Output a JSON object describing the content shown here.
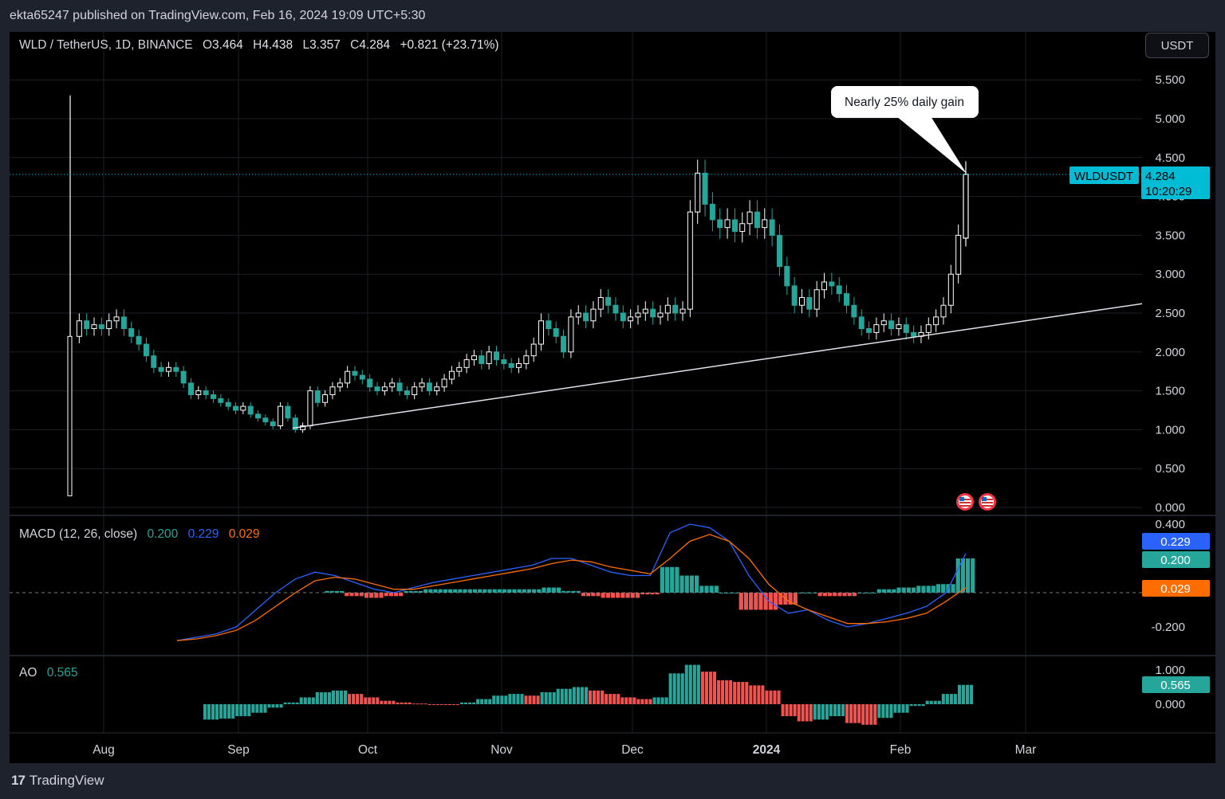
{
  "header": {
    "publisher": "ekta65247 published on TradingView.com, Feb 16, 2024 19:09 UTC+5:30"
  },
  "legend": {
    "symbol": "WLD / TetherUS, 1D, BINANCE",
    "o_label": "O",
    "o_value": "3.464",
    "h_label": "H",
    "h_value": "4.438",
    "l_label": "L",
    "l_value": "3.357",
    "c_label": "C",
    "c_value": "4.284",
    "change": "+0.821 (+23.71%)"
  },
  "currency_button": "USDT",
  "price_tag": {
    "symbol": "WLDUSDT",
    "price": "4.284",
    "countdown": "10:20:29"
  },
  "annotation": "Nearly 25% daily gain",
  "macd_legend": {
    "title": "MACD (12, 26, close)",
    "hist": "0.200",
    "macd": "0.229",
    "signal": "0.029"
  },
  "macd_tags": {
    "macd": "0.229",
    "hist": "0.200",
    "signal": "0.029"
  },
  "ao_legend": {
    "title": "AO",
    "value": "0.565"
  },
  "ao_tag": "0.565",
  "footer": {
    "brand": "TradingView",
    "mark": "17"
  },
  "colors": {
    "bg": "#000000",
    "up": "#26a69a",
    "down": "#ef5350",
    "macd": "#2962ff",
    "signal": "#ff6d00",
    "tag": "#00bcd4"
  },
  "icons": [
    "us-flag-event-icon",
    "us-flag-event-icon"
  ],
  "chart_data": [
    {
      "type": "candlestick",
      "y_ticks": [
        "5.500",
        "5.000",
        "4.500",
        "4.000",
        "3.500",
        "3.000",
        "2.500",
        "2.000",
        "1.500",
        "1.000",
        "0.500",
        "0.000"
      ],
      "x_ticks": [
        "Aug",
        "Sep",
        "Oct",
        "Nov",
        "Dec",
        "2024",
        "Feb",
        "Mar"
      ],
      "ylim": [
        0,
        5.8
      ],
      "close_series": [
        2.2,
        2.4,
        2.3,
        2.35,
        2.3,
        2.4,
        2.45,
        2.3,
        2.2,
        2.1,
        1.95,
        1.8,
        1.75,
        1.8,
        1.75,
        1.6,
        1.45,
        1.5,
        1.45,
        1.4,
        1.35,
        1.3,
        1.25,
        1.3,
        1.2,
        1.15,
        1.1,
        1.05,
        1.3,
        1.15,
        1.0,
        1.05,
        1.5,
        1.35,
        1.45,
        1.55,
        1.6,
        1.75,
        1.7,
        1.65,
        1.55,
        1.5,
        1.55,
        1.6,
        1.5,
        1.45,
        1.55,
        1.6,
        1.5,
        1.55,
        1.65,
        1.75,
        1.8,
        1.9,
        1.95,
        1.85,
        2.0,
        1.9,
        1.85,
        1.8,
        1.85,
        1.95,
        2.1,
        2.4,
        2.3,
        2.2,
        2.0,
        2.45,
        2.5,
        2.4,
        2.55,
        2.7,
        2.6,
        2.5,
        2.4,
        2.45,
        2.5,
        2.55,
        2.45,
        2.5,
        2.6,
        2.5,
        2.55,
        3.8,
        4.3,
        3.9,
        3.7,
        3.6,
        3.7,
        3.55,
        3.65,
        3.8,
        3.6,
        3.7,
        3.5,
        3.1,
        2.85,
        2.6,
        2.7,
        2.55,
        2.8,
        2.9,
        2.85,
        2.75,
        2.6,
        2.45,
        2.3,
        2.25,
        2.35,
        2.4,
        2.3,
        2.35,
        2.25,
        2.2,
        2.25,
        2.35,
        2.45,
        2.6,
        3.0,
        3.5,
        4.284
      ],
      "trendline": {
        "from": [
          "Sep 13",
          1.02
        ],
        "to": [
          "Feb 28",
          2.62
        ]
      },
      "last": {
        "open": 3.464,
        "high": 4.438,
        "low": 3.357,
        "close": 4.284
      }
    },
    {
      "type": "line",
      "name": "MACD",
      "y_ticks": [
        "0.400",
        "-0.200"
      ],
      "series": [
        {
          "name": "MACD",
          "values": [
            -0.28,
            -0.26,
            -0.24,
            -0.2,
            -0.1,
            0.0,
            0.08,
            0.12,
            0.1,
            0.06,
            0.02,
            0.0,
            0.03,
            0.06,
            0.08,
            0.1,
            0.12,
            0.14,
            0.16,
            0.2,
            0.2,
            0.16,
            0.12,
            0.1,
            0.1,
            0.35,
            0.4,
            0.38,
            0.3,
            0.1,
            -0.05,
            -0.12,
            -0.1,
            -0.16,
            -0.2,
            -0.18,
            -0.15,
            -0.12,
            -0.08,
            0.0,
            0.229
          ]
        },
        {
          "name": "Signal",
          "values": [
            -0.28,
            -0.27,
            -0.25,
            -0.22,
            -0.16,
            -0.08,
            0.0,
            0.07,
            0.09,
            0.08,
            0.05,
            0.02,
            0.02,
            0.04,
            0.06,
            0.08,
            0.1,
            0.12,
            0.14,
            0.17,
            0.19,
            0.18,
            0.15,
            0.13,
            0.11,
            0.2,
            0.3,
            0.34,
            0.3,
            0.2,
            0.05,
            -0.05,
            -0.1,
            -0.14,
            -0.18,
            -0.18,
            -0.17,
            -0.15,
            -0.12,
            -0.05,
            0.029
          ]
        }
      ]
    },
    {
      "type": "bar",
      "name": "AO",
      "y_ticks": [
        "1.000",
        "0.000"
      ],
      "values": [
        -0.45,
        -0.42,
        -0.35,
        -0.25,
        -0.1,
        0.05,
        0.2,
        0.35,
        0.4,
        0.3,
        0.2,
        0.1,
        0.05,
        0.02,
        0.0,
        -0.02,
        0.05,
        0.15,
        0.25,
        0.3,
        0.25,
        0.35,
        0.45,
        0.5,
        0.4,
        0.3,
        0.2,
        0.15,
        0.2,
        0.9,
        1.15,
        0.95,
        0.7,
        0.65,
        0.55,
        0.4,
        -0.35,
        -0.5,
        -0.45,
        -0.35,
        -0.55,
        -0.6,
        -0.4,
        -0.25,
        -0.05,
        0.1,
        0.3,
        0.565
      ]
    }
  ]
}
